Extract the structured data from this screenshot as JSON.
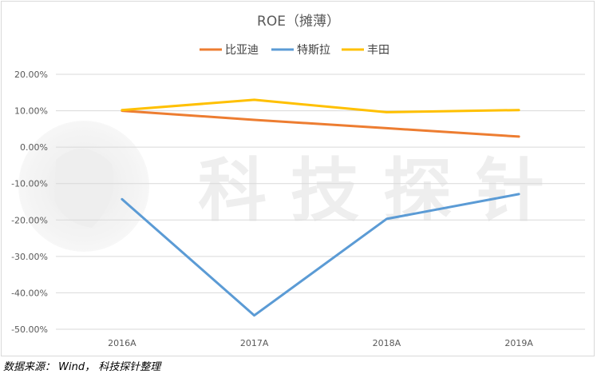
{
  "chart_data": {
    "type": "line",
    "title": "ROE（摊薄）",
    "categories": [
      "2016A",
      "2017A",
      "2018A",
      "2019A"
    ],
    "series": [
      {
        "name": "比亚迪",
        "color": "#ed7d31",
        "values": [
          10.0,
          7.5,
          5.2,
          2.9
        ]
      },
      {
        "name": "特斯拉",
        "color": "#5b9bd5",
        "values": [
          -14.3,
          -46.2,
          -19.7,
          -12.9
        ]
      },
      {
        "name": "丰田",
        "color": "#ffc000",
        "values": [
          10.2,
          13.0,
          9.6,
          10.2
        ]
      }
    ],
    "ylim": [
      -50,
      20
    ],
    "yticks": [
      20,
      10,
      0,
      -10,
      -20,
      -30,
      -40,
      -50
    ],
    "ytick_labels": [
      "20.00%",
      "10.00%",
      "0.00%",
      "-10.00%",
      "-20.00%",
      "-30.00%",
      "-40.00%",
      "-50.00%"
    ],
    "grid": true,
    "legend_position": "top-center"
  },
  "watermark": {
    "text": "科 技 探 针",
    "icon": "robot-face-watermark"
  },
  "source": "数据来源： Wind， 科技探针整理"
}
